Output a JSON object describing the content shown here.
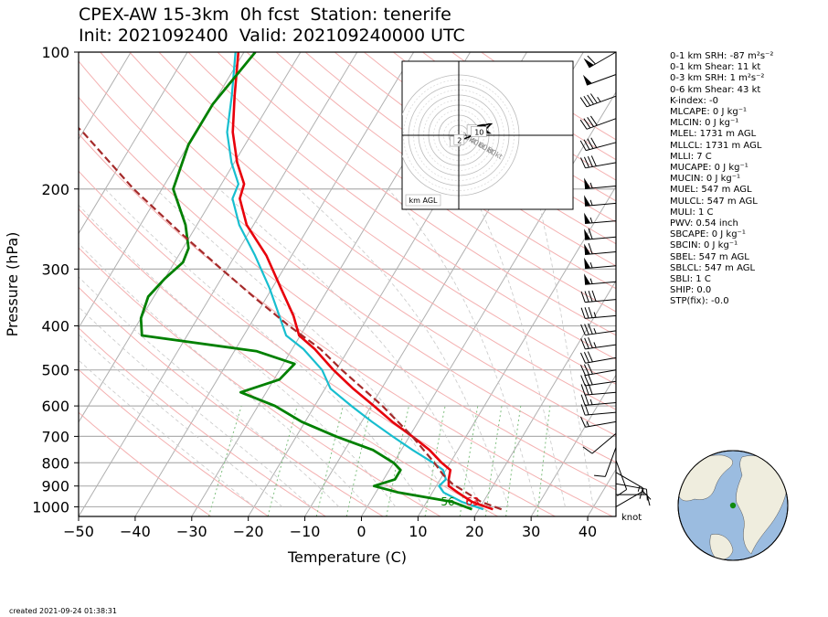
{
  "title_line1": "CPEX-AW 15-3km  0h fcst  Station: tenerife",
  "title_line2": "Init: 2021092400  Valid: 202109240000 UTC",
  "created": "created 2021-09-24 01:38:31",
  "indices": [
    "0-1 km SRH: -87 m²s⁻²",
    "0-1 km Shear: 11 kt",
    "0-3 km SRH: 1 m²s⁻²",
    "0-6 km Shear: 43 kt",
    "K-index: -0",
    "MLCAPE: 0 J kg⁻¹",
    "MLCIN: 0 J kg⁻¹",
    "MLEL: 1731 m AGL",
    "MLLCL: 1731 m AGL",
    "MLLI: 7 C",
    "MUCAPE: 0 J kg⁻¹",
    "MUCIN: 0 J kg⁻¹",
    "MUEL: 547 m AGL",
    "MULCL: 547 m AGL",
    "MULI: 1 C",
    "PWV: 0.54 inch",
    "SBCAPE: 0 J kg⁻¹",
    "SBCIN: 0 J kg⁻¹",
    "SBEL: 547 m AGL",
    "SBLCL: 547 m AGL",
    "SBLI: 1 C",
    "SHIP: 0.0",
    "STP(fix): -0.0"
  ],
  "colors": {
    "temperature": "#e8000b",
    "dewpoint": "#008000",
    "wetbulb": "#17becf",
    "parcel": "#a52a2a",
    "dry_adiabat": "#f4b0b0",
    "isotherm": "#b0b0b0",
    "mixing_ratio": "#7fbf7f",
    "ocean": "#9bbce0",
    "land": "#efedde"
  },
  "chart_data": {
    "type": "skew-t",
    "xlabel": "Temperature (C)",
    "ylabel": "Pressure (hPa)",
    "xlim": [
      -50,
      45
    ],
    "ylim": [
      1050,
      100
    ],
    "x_ticks": [
      -50,
      -40,
      -30,
      -20,
      -10,
      0,
      10,
      20,
      30,
      40
    ],
    "y_ticks": [
      100,
      200,
      300,
      400,
      500,
      600,
      700,
      800,
      900,
      1000
    ],
    "grid": true,
    "surface_labels": {
      "dewpoint": "56",
      "temperature": "63"
    },
    "wind_unit_label": "knot",
    "series": [
      {
        "key": "temperature",
        "points": [
          [
            1013,
            22.5
          ],
          [
            975,
            18
          ],
          [
            930,
            14.5
          ],
          [
            900,
            12.2
          ],
          [
            870,
            11.5
          ],
          [
            830,
            10.8
          ],
          [
            800,
            8.5
          ],
          [
            750,
            5
          ],
          [
            700,
            0.5
          ],
          [
            650,
            -4.6
          ],
          [
            600,
            -9.5
          ],
          [
            550,
            -15
          ],
          [
            500,
            -20.5
          ],
          [
            450,
            -26
          ],
          [
            420,
            -30.2
          ],
          [
            380,
            -33.3
          ],
          [
            330,
            -38.5
          ],
          [
            280,
            -44.5
          ],
          [
            240,
            -51.2
          ],
          [
            210,
            -55.2
          ],
          [
            195,
            -56
          ],
          [
            175,
            -59.5
          ],
          [
            150,
            -63.5
          ],
          [
            125,
            -67
          ],
          [
            100,
            -71
          ]
        ]
      },
      {
        "key": "wetbulb",
        "points": [
          [
            1013,
            20.8
          ],
          [
            975,
            16.2
          ],
          [
            930,
            12
          ],
          [
            900,
            10.5
          ],
          [
            870,
            11
          ],
          [
            830,
            9.5
          ],
          [
            800,
            7
          ],
          [
            750,
            2
          ],
          [
            700,
            -3
          ],
          [
            650,
            -8.2
          ],
          [
            600,
            -13.5
          ],
          [
            550,
            -19
          ],
          [
            500,
            -22.5
          ],
          [
            450,
            -28
          ],
          [
            420,
            -32.5
          ],
          [
            380,
            -35.8
          ],
          [
            330,
            -40.5
          ],
          [
            280,
            -46.5
          ],
          [
            240,
            -52.5
          ],
          [
            210,
            -56.5
          ],
          [
            195,
            -57
          ],
          [
            175,
            -60.5
          ],
          [
            150,
            -64.5
          ],
          [
            125,
            -67.5
          ],
          [
            100,
            -71.5
          ]
        ]
      },
      {
        "key": "dewpoint",
        "points": [
          [
            1013,
            18.8
          ],
          [
            975,
            14.5
          ],
          [
            930,
            4
          ],
          [
            900,
            -1
          ],
          [
            870,
            2
          ],
          [
            830,
            2
          ],
          [
            800,
            0
          ],
          [
            750,
            -5
          ],
          [
            700,
            -13
          ],
          [
            650,
            -20.6
          ],
          [
            600,
            -27
          ],
          [
            560,
            -34.5
          ],
          [
            525,
            -29
          ],
          [
            485,
            -28
          ],
          [
            455,
            -36
          ],
          [
            420,
            -58
          ],
          [
            385,
            -60
          ],
          [
            345,
            -61
          ],
          [
            315,
            -60
          ],
          [
            290,
            -58.5
          ],
          [
            270,
            -59
          ],
          [
            240,
            -62
          ],
          [
            200,
            -68
          ],
          [
            160,
            -70
          ],
          [
            130,
            -70
          ],
          [
            100,
            -68
          ]
        ]
      },
      {
        "key": "parcel",
        "points": [
          [
            1013,
            24
          ],
          [
            975,
            19.6
          ],
          [
            930,
            16
          ],
          [
            890,
            12.6
          ],
          [
            850,
            10
          ],
          [
            800,
            7.2
          ],
          [
            700,
            0.5
          ],
          [
            600,
            -8
          ],
          [
            500,
            -19
          ],
          [
            450,
            -25
          ],
          [
            400,
            -33
          ],
          [
            350,
            -41.5
          ],
          [
            300,
            -51
          ],
          [
            250,
            -62
          ],
          [
            200,
            -75
          ],
          [
            150,
            -90
          ],
          [
            140,
            -94
          ]
        ]
      }
    ],
    "hodograph": {
      "rings_kt": [
        20,
        40,
        60,
        80
      ],
      "ring_labels": [
        "20kt",
        "40kt",
        "60kt",
        "80kt"
      ],
      "height_labels": [
        "1",
        "2",
        "6",
        "10"
      ],
      "legend_label": "km AGL",
      "trace_kt": [
        [
          -7,
          -8
        ],
        [
          -6,
          -5
        ],
        [
          -2,
          -5
        ],
        [
          3,
          -5
        ],
        [
          8,
          -4
        ],
        [
          13,
          -2
        ],
        [
          18,
          1
        ],
        [
          22,
          6
        ],
        [
          25,
          10
        ],
        [
          29,
          12
        ],
        [
          32,
          12
        ],
        [
          33,
          11
        ],
        [
          32,
          8
        ],
        [
          34,
          5
        ],
        [
          36,
          3
        ],
        [
          38,
          3
        ],
        [
          35,
          5
        ],
        [
          34,
          8
        ],
        [
          36,
          10
        ],
        [
          38,
          12
        ],
        [
          40,
          14
        ],
        [
          37,
          14
        ],
        [
          34,
          13
        ],
        [
          30,
          13
        ],
        [
          25,
          12
        ],
        [
          20,
          11
        ],
        [
          16,
          9
        ],
        [
          13,
          8
        ],
        [
          12,
          7
        ],
        [
          13,
          6
        ],
        [
          14,
          6
        ]
      ]
    },
    "wind_barbs": [
      {
        "p": 100,
        "dir": 240,
        "kt": 60
      },
      {
        "p": 112,
        "dir": 250,
        "kt": 50
      },
      {
        "p": 125,
        "dir": 250,
        "kt": 45
      },
      {
        "p": 140,
        "dir": 250,
        "kt": 40
      },
      {
        "p": 158,
        "dir": 255,
        "kt": 40
      },
      {
        "p": 175,
        "dir": 260,
        "kt": 40
      },
      {
        "p": 197,
        "dir": 265,
        "kt": 55
      },
      {
        "p": 215,
        "dir": 265,
        "kt": 55
      },
      {
        "p": 235,
        "dir": 265,
        "kt": 55
      },
      {
        "p": 255,
        "dir": 265,
        "kt": 60
      },
      {
        "p": 275,
        "dir": 265,
        "kt": 60
      },
      {
        "p": 295,
        "dir": 265,
        "kt": 55
      },
      {
        "p": 320,
        "dir": 265,
        "kt": 55
      },
      {
        "p": 350,
        "dir": 265,
        "kt": 40
      },
      {
        "p": 380,
        "dir": 265,
        "kt": 35
      },
      {
        "p": 410,
        "dir": 262,
        "kt": 35
      },
      {
        "p": 440,
        "dir": 262,
        "kt": 35
      },
      {
        "p": 470,
        "dir": 260,
        "kt": 30
      },
      {
        "p": 500,
        "dir": 260,
        "kt": 30
      },
      {
        "p": 530,
        "dir": 262,
        "kt": 30
      },
      {
        "p": 560,
        "dir": 265,
        "kt": 30
      },
      {
        "p": 590,
        "dir": 265,
        "kt": 25
      },
      {
        "p": 620,
        "dir": 265,
        "kt": 20
      },
      {
        "p": 650,
        "dir": 260,
        "kt": 15
      },
      {
        "p": 690,
        "dir": 230,
        "kt": 10
      },
      {
        "p": 740,
        "dir": 200,
        "kt": 10
      },
      {
        "p": 790,
        "dir": 160,
        "kt": 10
      },
      {
        "p": 840,
        "dir": 120,
        "kt": 15
      },
      {
        "p": 890,
        "dir": 100,
        "kt": 15
      },
      {
        "p": 940,
        "dir": 90,
        "kt": 10
      },
      {
        "p": 1000,
        "dir": 60,
        "kt": 10
      }
    ]
  }
}
